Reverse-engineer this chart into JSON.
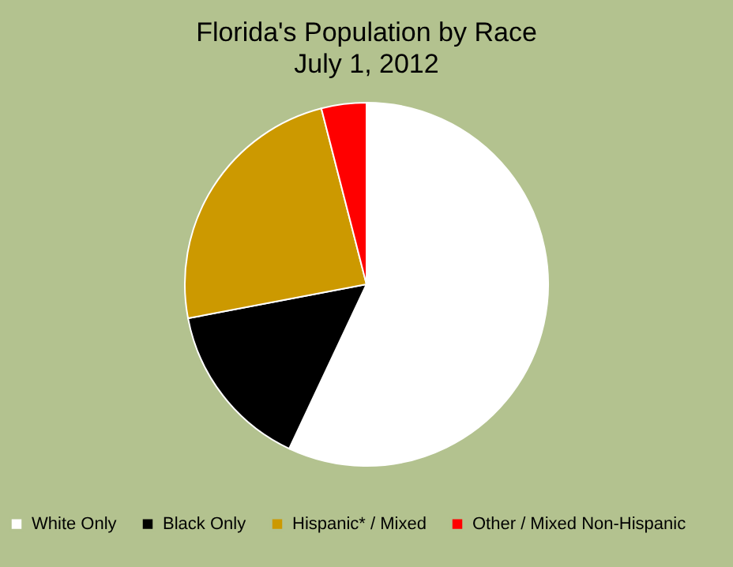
{
  "chart_data": {
    "type": "pie",
    "title": "Florida's Population by Race",
    "subtitle": "July 1, 2012",
    "categories": [
      "White Only",
      "Black Only",
      "Hispanic* / Mixed",
      "Other / Mixed Non-Hispanic"
    ],
    "values": [
      57,
      15,
      24,
      4
    ],
    "colors": [
      "#ffffff",
      "#000000",
      "#cc9900",
      "#ff0000"
    ],
    "legend": "bottom"
  }
}
